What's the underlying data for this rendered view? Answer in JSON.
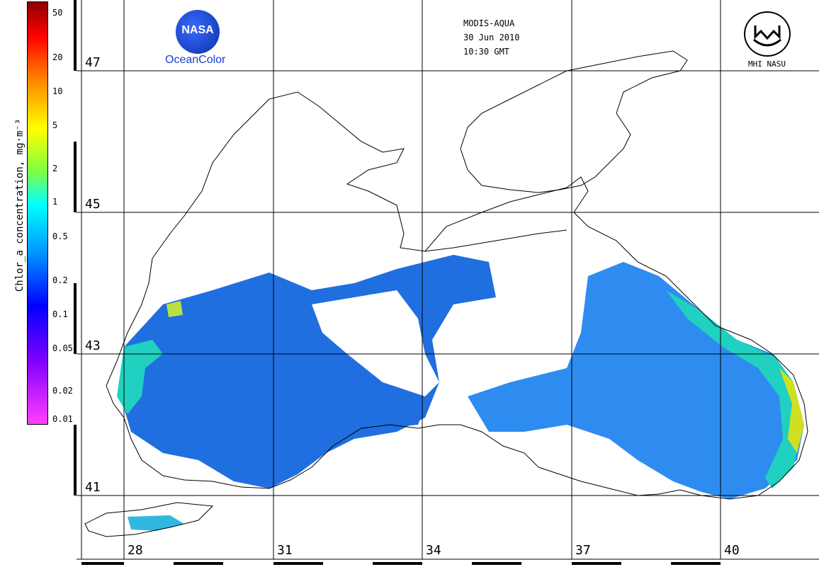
{
  "header": {
    "sensor": "MODIS-AQUA",
    "date": "30 Jun 2010",
    "time": "10:30 GMT"
  },
  "logos": {
    "left_logo_text": "NASA",
    "left_caption": "OceanColor",
    "right_caption": "MHI NASU"
  },
  "colorbar": {
    "title": "Chlor_a concentration, mg·m⁻³",
    "ticks": [
      "50",
      "20",
      "10",
      "5",
      "2",
      "1",
      "0.5",
      "0.2",
      "0.1",
      "0.05",
      "0.02",
      "0.01"
    ]
  },
  "grid": {
    "latitudes": [
      "47",
      "45",
      "43",
      "41"
    ],
    "longitudes": [
      "28",
      "31",
      "34",
      "37",
      "40"
    ]
  },
  "colors": {
    "ocean_low": "#1f6fe0",
    "ocean_mid": "#2e8cf0",
    "coastal_high": "#20d0c0",
    "coastal_very_high": "#d0e020",
    "coastline": "#000000",
    "grid": "#000000"
  }
}
